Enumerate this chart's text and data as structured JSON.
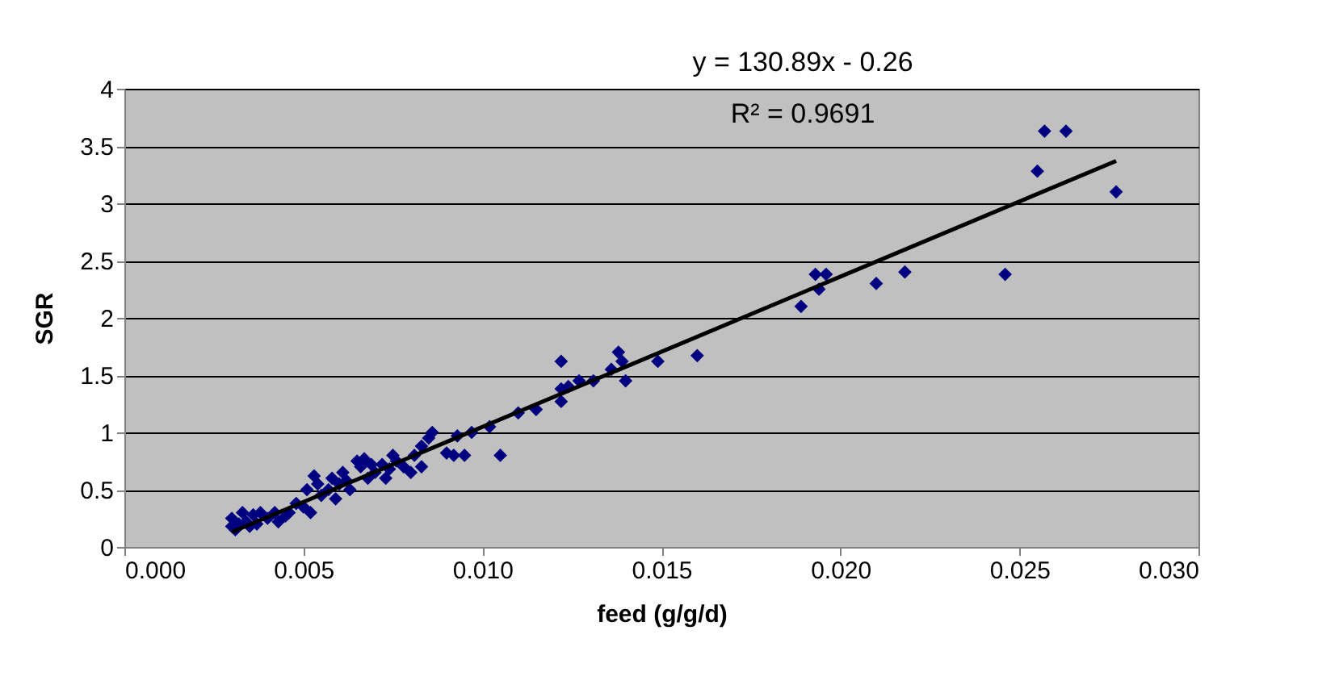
{
  "chart_data": {
    "type": "scatter",
    "xlabel": "feed (g/g/d)",
    "ylabel": "SGR",
    "xlim": [
      0,
      0.03
    ],
    "xticks": [
      {
        "value": 0,
        "label": "0.000"
      },
      {
        "value": 0.005,
        "label": "0.005"
      },
      {
        "value": 0.01,
        "label": "0.010"
      },
      {
        "value": 0.015,
        "label": "0.015"
      },
      {
        "value": 0.02,
        "label": "0.020"
      },
      {
        "value": 0.025,
        "label": "0.025"
      },
      {
        "value": 0.03,
        "label": "0.030"
      }
    ],
    "ylim": [
      0,
      4
    ],
    "yticks": [
      0,
      0.5,
      1,
      1.5,
      2,
      2.5,
      3,
      3.5,
      4
    ],
    "grid": "y",
    "legend": false,
    "marker": "diamond",
    "annotations": [
      "y = 130.89x - 0.26",
      "R² = 0.9691"
    ],
    "series": [
      {
        "color": "#000080",
        "x": [
          0.0255,
          0.0257,
          0.0263,
          0.0277,
          0.0246,
          0.0218,
          0.021,
          0.0196,
          0.0193,
          0.0194,
          0.0189,
          0.016,
          0.0149,
          0.014,
          0.0138,
          0.0139,
          0.0136,
          0.0131,
          0.0127,
          0.0124,
          0.0122,
          0.0122,
          0.0122,
          0.0115,
          0.011,
          0.0105,
          0.0102,
          0.0097,
          0.0095,
          0.0093,
          0.0092,
          0.009,
          0.0086,
          0.0085,
          0.0083,
          0.0083,
          0.0081,
          0.008,
          0.0078,
          0.0076,
          0.0075,
          0.0074,
          0.0073,
          0.0072,
          0.007,
          0.0069,
          0.0068,
          0.0067,
          0.0066,
          0.0065,
          0.0063,
          0.0062,
          0.0061,
          0.006,
          0.0059,
          0.0058,
          0.0057,
          0.0055,
          0.0054,
          0.0053,
          0.0052,
          0.0051,
          0.005,
          0.0048,
          0.0046,
          0.0045,
          0.0043,
          0.0042,
          0.004,
          0.0038,
          0.0037,
          0.0036,
          0.0035,
          0.0034,
          0.0033,
          0.0032,
          0.0031,
          0.003,
          0.003
        ],
        "values": [
          3.28,
          3.63,
          3.63,
          3.1,
          2.38,
          2.4,
          2.3,
          2.38,
          2.38,
          2.25,
          2.1,
          1.67,
          1.62,
          1.45,
          1.7,
          1.62,
          1.55,
          1.45,
          1.45,
          1.4,
          1.62,
          1.38,
          1.27,
          1.2,
          1.17,
          0.8,
          1.05,
          1.0,
          0.8,
          0.97,
          0.8,
          0.82,
          1.0,
          0.95,
          0.88,
          0.7,
          0.8,
          0.65,
          0.7,
          0.75,
          0.8,
          0.68,
          0.6,
          0.72,
          0.65,
          0.72,
          0.6,
          0.77,
          0.7,
          0.75,
          0.5,
          0.58,
          0.65,
          0.55,
          0.42,
          0.6,
          0.5,
          0.45,
          0.55,
          0.62,
          0.3,
          0.5,
          0.35,
          0.38,
          0.3,
          0.27,
          0.22,
          0.3,
          0.25,
          0.3,
          0.2,
          0.28,
          0.18,
          0.22,
          0.3,
          0.2,
          0.15,
          0.25,
          0.18
        ]
      },
      {
        "type": "line",
        "color": "#000000",
        "marker": "none",
        "line_style": "solid",
        "x": [
          0.003,
          0.0277
        ],
        "values": [
          0.13,
          3.37
        ]
      }
    ]
  }
}
